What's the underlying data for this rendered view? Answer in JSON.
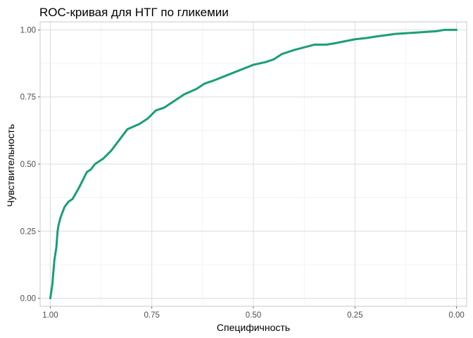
{
  "chart_data": {
    "type": "line",
    "title": "ROC-кривая для НТГ по гликемии",
    "xlabel": "Специфичность",
    "ylabel": "Чувствительность",
    "x_reversed": true,
    "xlim": [
      1.025,
      -0.025
    ],
    "ylim": [
      -0.03,
      1.03
    ],
    "x_ticks": [
      1.0,
      0.75,
      0.5,
      0.25,
      0.0
    ],
    "x_tick_labels": [
      "1.00",
      "0.75",
      "0.50",
      "0.25",
      "0.00"
    ],
    "y_ticks": [
      0.0,
      0.25,
      0.5,
      0.75,
      1.0
    ],
    "y_tick_labels": [
      "0.00",
      "0.25",
      "0.50",
      "0.75",
      "1.00"
    ],
    "grid": true,
    "line_color": "#1b9e77",
    "series": [
      {
        "x": [
          1.0,
          0.995,
          0.99,
          0.985,
          0.982,
          0.98,
          0.975,
          0.965,
          0.955,
          0.945,
          0.93,
          0.91,
          0.9,
          0.89,
          0.87,
          0.85,
          0.83,
          0.81,
          0.78,
          0.76,
          0.74,
          0.72,
          0.7,
          0.67,
          0.64,
          0.62,
          0.6,
          0.55,
          0.5,
          0.47,
          0.45,
          0.43,
          0.4,
          0.35,
          0.32,
          0.3,
          0.25,
          0.22,
          0.2,
          0.15,
          0.1,
          0.05,
          0.03,
          0.0
        ],
        "y": [
          0.0,
          0.05,
          0.14,
          0.19,
          0.25,
          0.27,
          0.3,
          0.34,
          0.36,
          0.37,
          0.41,
          0.47,
          0.48,
          0.5,
          0.52,
          0.55,
          0.59,
          0.63,
          0.65,
          0.67,
          0.7,
          0.71,
          0.73,
          0.76,
          0.78,
          0.8,
          0.81,
          0.84,
          0.87,
          0.88,
          0.89,
          0.91,
          0.925,
          0.945,
          0.945,
          0.95,
          0.965,
          0.97,
          0.975,
          0.985,
          0.99,
          0.995,
          1.0,
          1.0
        ]
      }
    ]
  }
}
